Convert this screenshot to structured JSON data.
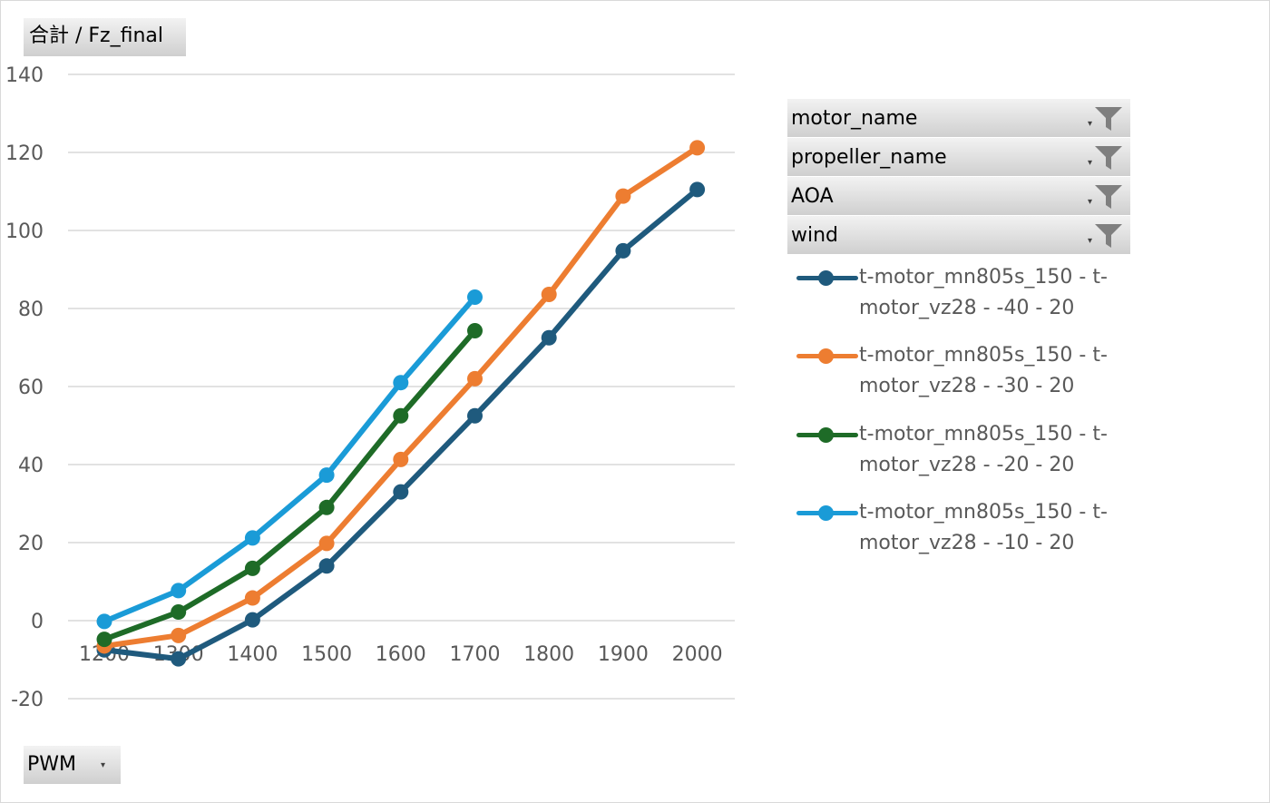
{
  "value_field": {
    "label": "合計 / Fz_final"
  },
  "axis_field": {
    "label": "PWM",
    "dropdown": "▾"
  },
  "filters": [
    {
      "label": "motor_name",
      "icon": "filter-icon"
    },
    {
      "label": "propeller_name",
      "icon": "filter-icon"
    },
    {
      "label": "AOA",
      "icon": "filter-icon"
    },
    {
      "label": "wind",
      "icon": "filter-icon"
    }
  ],
  "chart_data": {
    "type": "line",
    "title": "",
    "xlabel": "",
    "ylabel": "",
    "categories": [
      "1200",
      "1300",
      "1400",
      "1500",
      "1600",
      "1700",
      "1800",
      "1900",
      "2000"
    ],
    "ylim": [
      -20,
      140
    ],
    "yticks": [
      -20,
      0,
      20,
      40,
      60,
      80,
      100,
      120,
      140
    ],
    "grid": true,
    "legend_position": "right",
    "series": [
      {
        "name_line1": "t-motor_mn805s_150 - t-",
        "name_line2": "motor_vz28 - -40 - 20",
        "color": "#1f5a7d",
        "values": [
          -7.5,
          -9.8,
          0.2,
          14,
          33,
          52.5,
          72.5,
          94.8,
          110.5
        ]
      },
      {
        "name_line1": "t-motor_mn805s_150 - t-",
        "name_line2": "motor_vz28 - -30 - 20",
        "color": "#ed7d31",
        "values": [
          -6.5,
          -3.8,
          5.8,
          19.8,
          41.3,
          62,
          83.6,
          108.8,
          121.2
        ]
      },
      {
        "name_line1": "t-motor_mn805s_150 - t-",
        "name_line2": "motor_vz28 - -20 - 20",
        "color": "#1e6b27",
        "values": [
          -4.8,
          2.2,
          13.4,
          29,
          52.5,
          74.3,
          null,
          null,
          null
        ]
      },
      {
        "name_line1": "t-motor_mn805s_150 - t-",
        "name_line2": "motor_vz28 - -10 - 20",
        "color": "#1a9bd7",
        "values": [
          -0.2,
          7.7,
          21.2,
          37.3,
          61,
          82.9,
          null,
          null,
          null
        ]
      }
    ]
  }
}
